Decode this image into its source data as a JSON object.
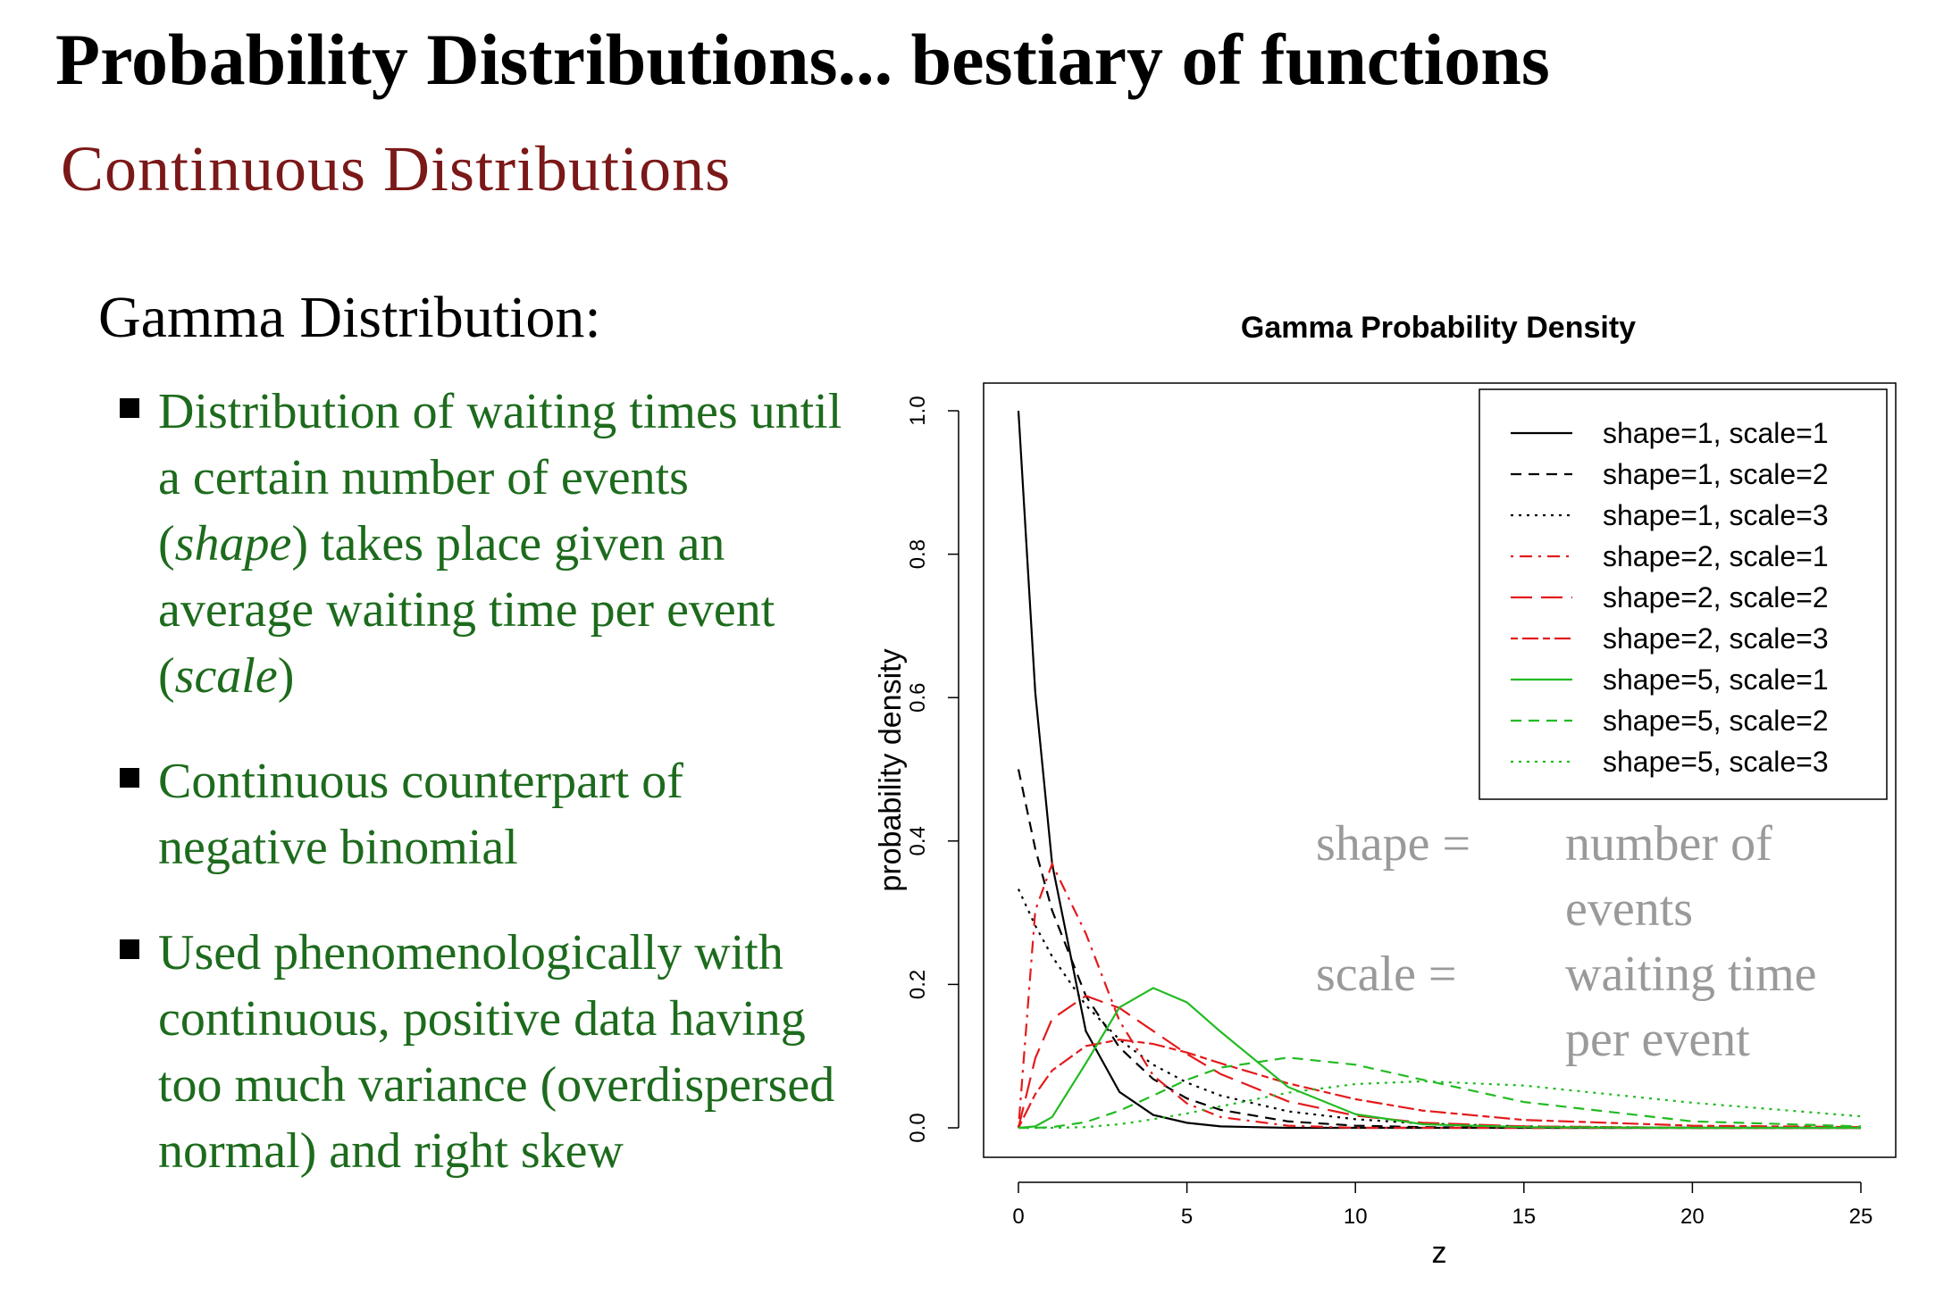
{
  "header": {
    "title": "Probability Distributions... bestiary of functions",
    "subtitle": "Continuous Distributions"
  },
  "body": {
    "heading": "Gamma Distribution:",
    "bullets": [
      [
        "Distribution of waiting times until a certain number of events (",
        "shape",
        ") takes place given an average waiting time per event (",
        "scale",
        ")"
      ],
      [
        "Continuous counterpart of negative binomial"
      ],
      [
        "Used phenomenologically with continuous, positive data having too much variance (overdispersed normal) and right skew"
      ]
    ]
  },
  "chart_data": {
    "type": "line",
    "title": "Gamma Probability Density",
    "x_label": "z",
    "y_label": "probability density",
    "x": [
      0,
      0.5,
      1,
      2,
      3,
      4,
      5,
      6,
      8,
      10,
      12,
      15,
      20,
      25
    ],
    "series": [
      {
        "name": "shape=1, scale=1",
        "color": "#000000",
        "dash": "solid",
        "values": [
          1,
          0.607,
          0.368,
          0.135,
          0.05,
          0.018,
          0.007,
          0.002,
          0,
          0,
          0,
          0,
          0,
          0
        ]
      },
      {
        "name": "shape=1, scale=2",
        "color": "#000000",
        "dash": "dashed",
        "values": [
          0.5,
          0.389,
          0.303,
          0.184,
          0.112,
          0.068,
          0.041,
          0.025,
          0.009,
          0.003,
          0.001,
          0,
          0,
          0
        ]
      },
      {
        "name": "shape=1, scale=3",
        "color": "#000000",
        "dash": "dotted",
        "values": [
          0.333,
          0.282,
          0.239,
          0.171,
          0.123,
          0.088,
          0.063,
          0.045,
          0.023,
          0.012,
          0.006,
          0.002,
          0,
          0
        ]
      },
      {
        "name": "shape=2, scale=1",
        "color": "#e31a1c",
        "dash": "dotdash",
        "values": [
          0,
          0.303,
          0.368,
          0.271,
          0.149,
          0.073,
          0.034,
          0.015,
          0.003,
          0,
          0,
          0,
          0,
          0
        ]
      },
      {
        "name": "shape=2, scale=2",
        "color": "#e31a1c",
        "dash": "longdash",
        "values": [
          0,
          0.097,
          0.152,
          0.184,
          0.167,
          0.135,
          0.103,
          0.075,
          0.037,
          0.017,
          0.007,
          0.002,
          0,
          0
        ]
      },
      {
        "name": "shape=2, scale=3",
        "color": "#e31a1c",
        "dash": "twodash",
        "values": [
          0,
          0.047,
          0.08,
          0.114,
          0.123,
          0.117,
          0.105,
          0.09,
          0.062,
          0.04,
          0.024,
          0.011,
          0.003,
          0.001
        ]
      },
      {
        "name": "shape=5, scale=1",
        "color": "#22bb22",
        "dash": "solid",
        "values": [
          0,
          0.002,
          0.015,
          0.09,
          0.168,
          0.195,
          0.175,
          0.134,
          0.057,
          0.019,
          0.005,
          0.001,
          0,
          0
        ]
      },
      {
        "name": "shape=5, scale=2",
        "color": "#22bb22",
        "dash": "dashed",
        "values": [
          0,
          0,
          0.001,
          0.008,
          0.024,
          0.045,
          0.067,
          0.084,
          0.098,
          0.088,
          0.067,
          0.036,
          0.009,
          0.002
        ]
      },
      {
        "name": "shape=5, scale=3",
        "color": "#22bb22",
        "dash": "dotted",
        "values": [
          0,
          0,
          0,
          0.001,
          0.005,
          0.012,
          0.02,
          0.03,
          0.049,
          0.061,
          0.065,
          0.059,
          0.035,
          0.016
        ]
      }
    ],
    "xlim": [
      0,
      25
    ],
    "xticks": [
      0,
      5,
      10,
      15,
      20,
      25
    ],
    "ylim": [
      0,
      1
    ],
    "yticks": [
      {
        "value": 0,
        "label": "0.0"
      },
      0.2,
      0.4,
      0.6,
      0.8,
      {
        "value": 1,
        "label": "1.0"
      }
    ],
    "legend": "top-right",
    "grid": false,
    "annotations": [
      "shape =",
      "number of",
      "events",
      "scale =",
      "waiting time",
      "per event"
    ]
  }
}
